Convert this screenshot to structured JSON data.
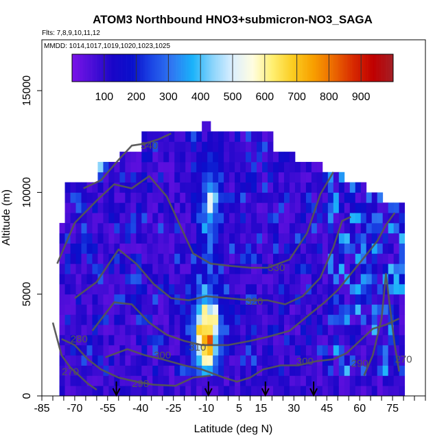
{
  "chart_data": {
    "type": "heatmap",
    "title": "ATOM3 Northbound HNO3+submicron-NO3_SAGA",
    "flights_label": "Flts: 7,8,9,10,11,12",
    "dates_label": "MMDD: 1014,1017,1019,1020,1023,1025",
    "xlabel": "Latitude (deg N)",
    "ylabel": "Altitude (m)",
    "xlim": [
      -85,
      90
    ],
    "ylim": [
      0,
      17500
    ],
    "x_ticks": [
      -85,
      -70,
      -55,
      -40,
      -25,
      -10,
      5,
      15,
      30,
      45,
      60,
      75
    ],
    "y_ticks": [
      0,
      5000,
      10000,
      15000
    ],
    "colorbar": {
      "range": [
        0,
        1000
      ],
      "tick_values": [
        100,
        200,
        300,
        400,
        500,
        600,
        700,
        800,
        900
      ],
      "colors": [
        "#7a12e8",
        "#4b0ed8",
        "#1a06c8",
        "#0a10cc",
        "#1c48e6",
        "#2f78f2",
        "#19b2fa",
        "#8ad4fb",
        "#dcefff",
        "#fffde0",
        "#ffef70",
        "#fbcc20",
        "#f8a000",
        "#ec6a00",
        "#d82a00",
        "#c00000",
        "#a31f26"
      ]
    },
    "contour_labels": [
      {
        "value": "340",
        "lat": -36,
        "alt": 12300
      },
      {
        "value": "330",
        "lat": 22,
        "alt": 6300
      },
      {
        "value": "320",
        "lat": 12,
        "alt": 4650
      },
      {
        "value": "310",
        "lat": -14,
        "alt": 2400
      },
      {
        "value": "300",
        "lat": -30,
        "alt": 2000
      },
      {
        "value": "300",
        "lat": 35,
        "alt": 1700
      },
      {
        "value": "290",
        "lat": -40,
        "alt": 600
      },
      {
        "value": "290",
        "lat": 60,
        "alt": 1600
      },
      {
        "value": "280",
        "lat": -68,
        "alt": 2800
      },
      {
        "value": "270",
        "lat": -72,
        "alt": 1200
      },
      {
        "value": "270",
        "lat": 80,
        "alt": 1800
      }
    ],
    "flight_markers_lat": [
      -51,
      -9,
      17,
      39
    ]
  }
}
